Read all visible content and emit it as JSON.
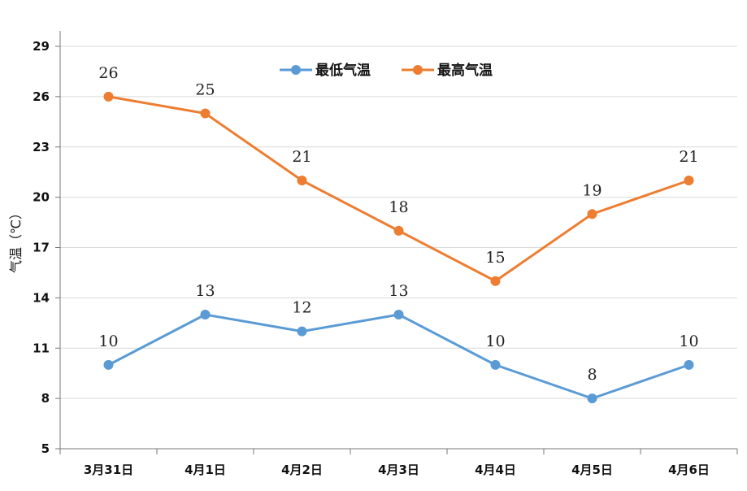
{
  "chart_data": {
    "type": "line",
    "title": "",
    "xlabel": "",
    "ylabel": "气温（℃）",
    "categories": [
      "3月31日",
      "4月1日",
      "4月2日",
      "4月3日",
      "4月4日",
      "4月5日",
      "4月6日"
    ],
    "ylim": [
      5,
      29
    ],
    "yticks": [
      5,
      8,
      11,
      14,
      17,
      20,
      23,
      26,
      29
    ],
    "grid": true,
    "legend_position": "top-center",
    "series": [
      {
        "name": "最低气温",
        "color": "#5B9BD5",
        "values": [
          10,
          13,
          12,
          13,
          10,
          8,
          10
        ]
      },
      {
        "name": "最高气温",
        "color": "#ED7D31",
        "values": [
          26,
          25,
          21,
          18,
          15,
          19,
          21
        ]
      }
    ]
  }
}
